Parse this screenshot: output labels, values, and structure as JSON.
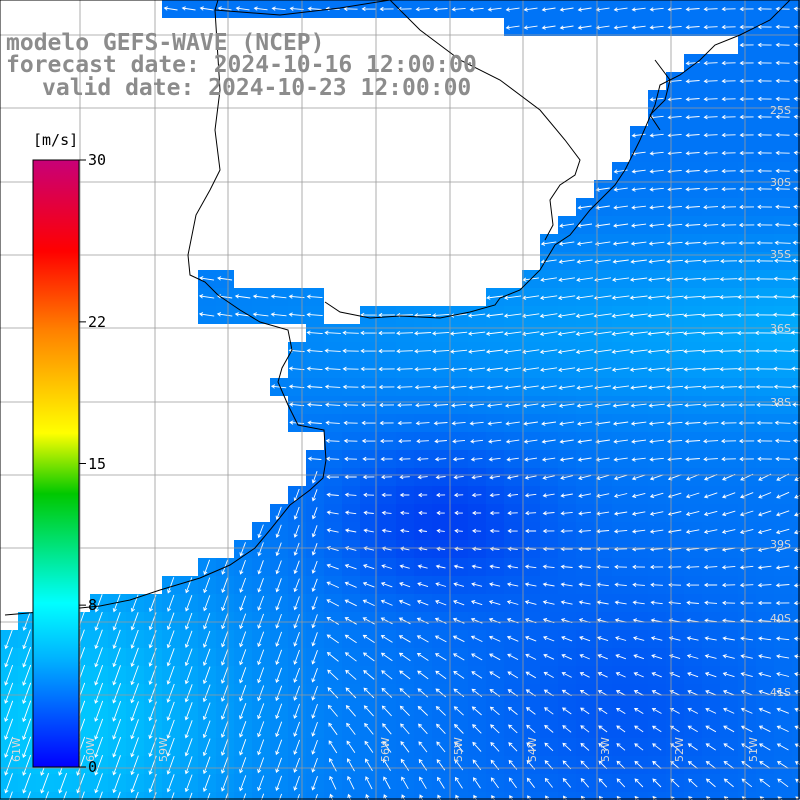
{
  "title": {
    "line1": "modelo GEFS-WAVE (NCEP)",
    "line2": "forecast date: 2024-10-16 12:00:00",
    "line3": "valid date: 2024-10-23 12:00:00"
  },
  "colorbar": {
    "unit": "[m/s]",
    "ticks": [
      {
        "label": "30",
        "value": 30
      },
      {
        "label": "22",
        "value": 22
      },
      {
        "label": "15",
        "value": 15
      },
      {
        "label": "8",
        "value": 8
      },
      {
        "label": "0",
        "value": 0
      }
    ],
    "range": [
      0,
      30
    ],
    "colors": [
      "#0000ff",
      "#00c8ff",
      "#00ffff",
      "#00c000",
      "#ffff00",
      "#ff8000",
      "#ff0000",
      "#c00060"
    ]
  },
  "lat_labels": [
    "25S",
    "30S",
    "35S",
    "36S",
    "38S",
    "39S",
    "40S",
    "41S"
  ],
  "lon_labels": [
    "61W",
    "60W",
    "59W",
    "56W",
    "55W",
    "54W",
    "53W",
    "52W",
    "51W"
  ],
  "wind_field": {
    "field_color_low": "#0030f0",
    "field_color_high": "#00c8ff",
    "arrow_color": "#ffffff",
    "land_color": "#ffffff",
    "grid_color": "#9a9a9a"
  }
}
